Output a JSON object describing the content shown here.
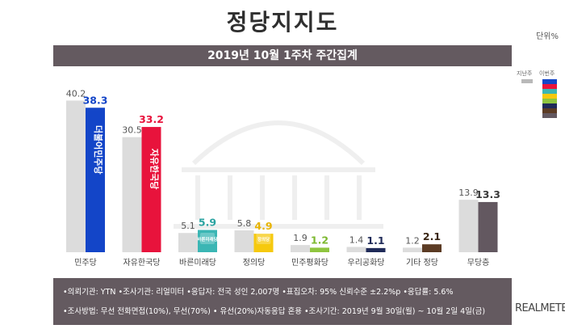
{
  "title": "정당지지도",
  "unit_label": "단위%",
  "subtitle": "2019년 10월 1주차 주간집계",
  "legend": {
    "prev_label": "지난주",
    "curr_label": "이번주",
    "prev_color": "#b9b9b9"
  },
  "colors": {
    "prev_bar": "#dcdcdc",
    "header_bg": "#645a60"
  },
  "info": {
    "line1": "•의뢰기관: YTN  •조사기관: 리얼미터  •응답자: 전국 성인 2,007명  •표집오차: 95% 신뢰수준 ±2.2%p  •응답률: 5.6%",
    "line2": "•조사방법: 무선 전화면접(10%), 무선(70%) • 유선(20%)자동응답 혼용  •조사기간: 2019년 9월 30일(월) ~ 10월 2일 4일(금)"
  },
  "brand": "REALMETER",
  "chart_data": {
    "type": "bar",
    "categories": [
      "민주당",
      "자유한국당",
      "바른미래당",
      "정의당",
      "민주평화당",
      "우리공화당",
      "기타 정당",
      "무당층"
    ],
    "series": [
      {
        "name": "지난주",
        "values": [
          40.2,
          30.5,
          5.1,
          5.8,
          1.9,
          1.4,
          1.2,
          13.9
        ]
      },
      {
        "name": "이번주",
        "values": [
          38.3,
          33.2,
          5.9,
          4.9,
          1.2,
          1.1,
          2.1,
          13.3
        ]
      }
    ],
    "series_colors": [
      "#dcdcdc",
      [
        "#1345c8",
        "#e8133c",
        "#3bb6b4",
        "#f6c90e",
        "#8fc53f",
        "#1f2a58",
        "#5b3b24",
        "#635860"
      ]
    ],
    "label_colors": [
      "#555555",
      [
        "#1345c8",
        "#e8133c",
        "#2aa3a1",
        "#e8b400",
        "#7cb82f",
        "#1f2a58",
        "#3a2615",
        "#3a3a3a"
      ]
    ],
    "bar_logos": [
      "더불어민주당",
      "자유한국당",
      "바른미래당",
      "정의당",
      "",
      "",
      "",
      ""
    ],
    "xlabel": "",
    "ylabel": "",
    "ylim": [
      0,
      42
    ]
  }
}
